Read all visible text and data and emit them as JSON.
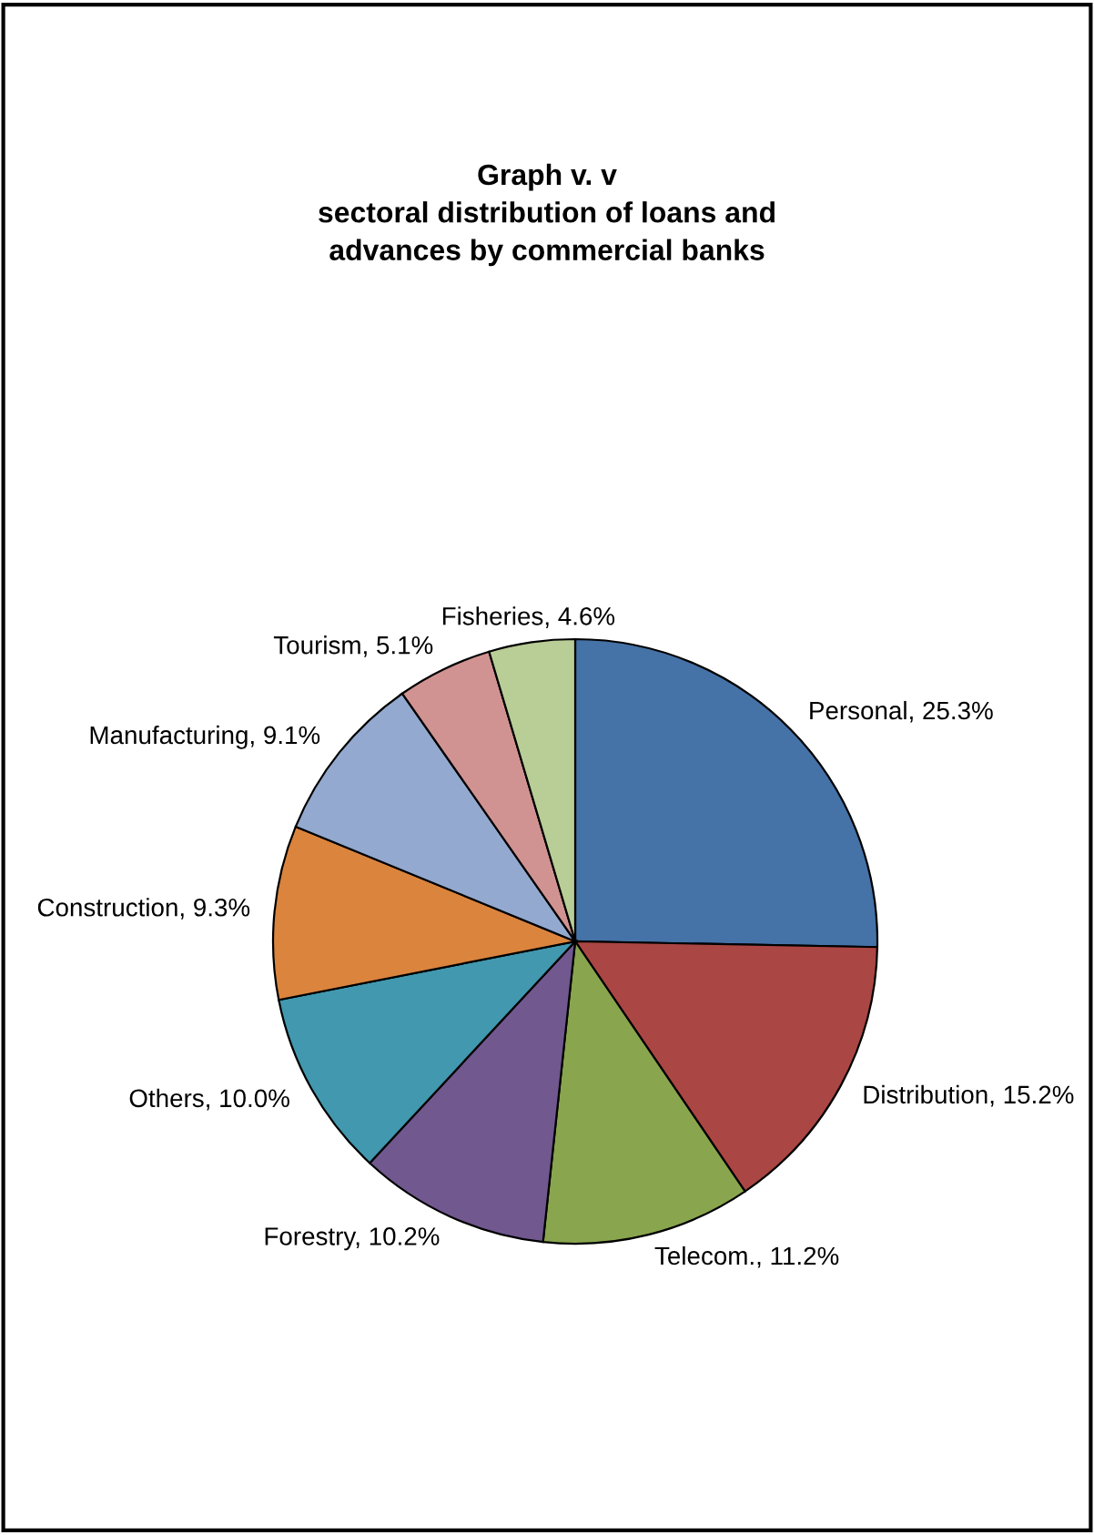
{
  "chart_data": {
    "type": "pie",
    "title": "Graph v. v\nsectoral distribution of loans and\nadvances by commercial banks",
    "categories": [
      "Personal",
      "Distribution",
      "Telecom.",
      "Forestry",
      "Others",
      "Construction",
      "Manufacturing",
      "Tourism",
      "Fisheries"
    ],
    "values": [
      25.3,
      15.2,
      11.2,
      10.2,
      10.0,
      9.3,
      9.1,
      5.1,
      4.6
    ],
    "value_labels": [
      "25.3%",
      "15.2%",
      "11.2%",
      "10.2%",
      "10.0%",
      "9.3%",
      "9.1%",
      "5.1%",
      "4.6%"
    ],
    "colors": [
      "#4572a7",
      "#aa4643",
      "#89a54e",
      "#71588f",
      "#4198af",
      "#db843d",
      "#93a9cf",
      "#d19392",
      "#b9cd96"
    ],
    "legend": false
  }
}
